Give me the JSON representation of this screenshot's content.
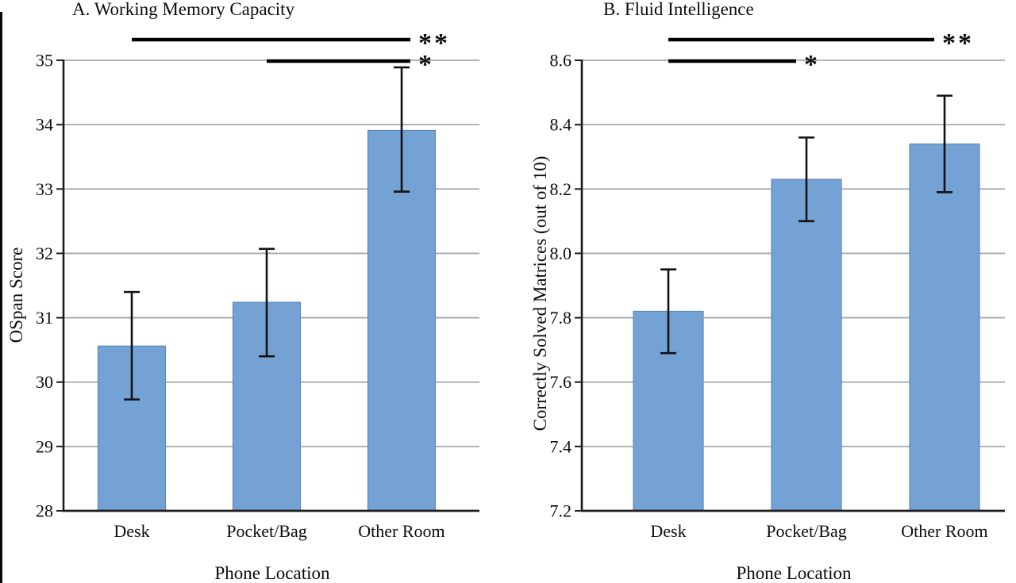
{
  "figure": {
    "background": "#ffffff",
    "bar_fill": "#74A2D5",
    "bar_border": "#6288B4",
    "gridline_color": "#A8A8A8",
    "axis_color": "#1C1C1C",
    "error_bar_color": "#111111",
    "sig_line_color": "#000000"
  },
  "chart_data": [
    {
      "type": "bar",
      "title": "A. Working Memory Capacity",
      "xlabel": "Phone Location",
      "ylabel": "OSpan Score",
      "categories": [
        "Desk",
        "Pocket/Bag",
        "Other Room"
      ],
      "values": [
        30.56,
        31.24,
        33.91
      ],
      "error_low": [
        29.73,
        30.4,
        32.96
      ],
      "error_high": [
        31.4,
        32.07,
        34.89
      ],
      "ylim": [
        28,
        35
      ],
      "yticks": [
        "28",
        "29",
        "30",
        "31",
        "32",
        "33",
        "34",
        "35"
      ],
      "grid": true,
      "legend": "none",
      "significance": [
        {
          "from": "Desk",
          "to": "Other Room",
          "label": "**"
        },
        {
          "from": "Pocket/Bag",
          "to": "Other Room",
          "label": "*"
        }
      ]
    },
    {
      "type": "bar",
      "title": "B. Fluid Intelligence",
      "xlabel": "Phone Location",
      "ylabel": "Correctly Solved Matrices (out of 10)",
      "categories": [
        "Desk",
        "Pocket/Bag",
        "Other Room"
      ],
      "values": [
        7.82,
        8.23,
        8.34
      ],
      "error_low": [
        7.69,
        8.1,
        8.19
      ],
      "error_high": [
        7.95,
        8.36,
        8.49
      ],
      "ylim": [
        7.2,
        8.6
      ],
      "yticks": [
        "7.2",
        "7.4",
        "7.6",
        "7.8",
        "8.0",
        "8.2",
        "8.4",
        "8.6"
      ],
      "grid": true,
      "legend": "none",
      "significance": [
        {
          "from": "Desk",
          "to": "Other Room",
          "label": "**"
        },
        {
          "from": "Desk",
          "to": "Pocket/Bag",
          "label": "*"
        }
      ]
    }
  ]
}
